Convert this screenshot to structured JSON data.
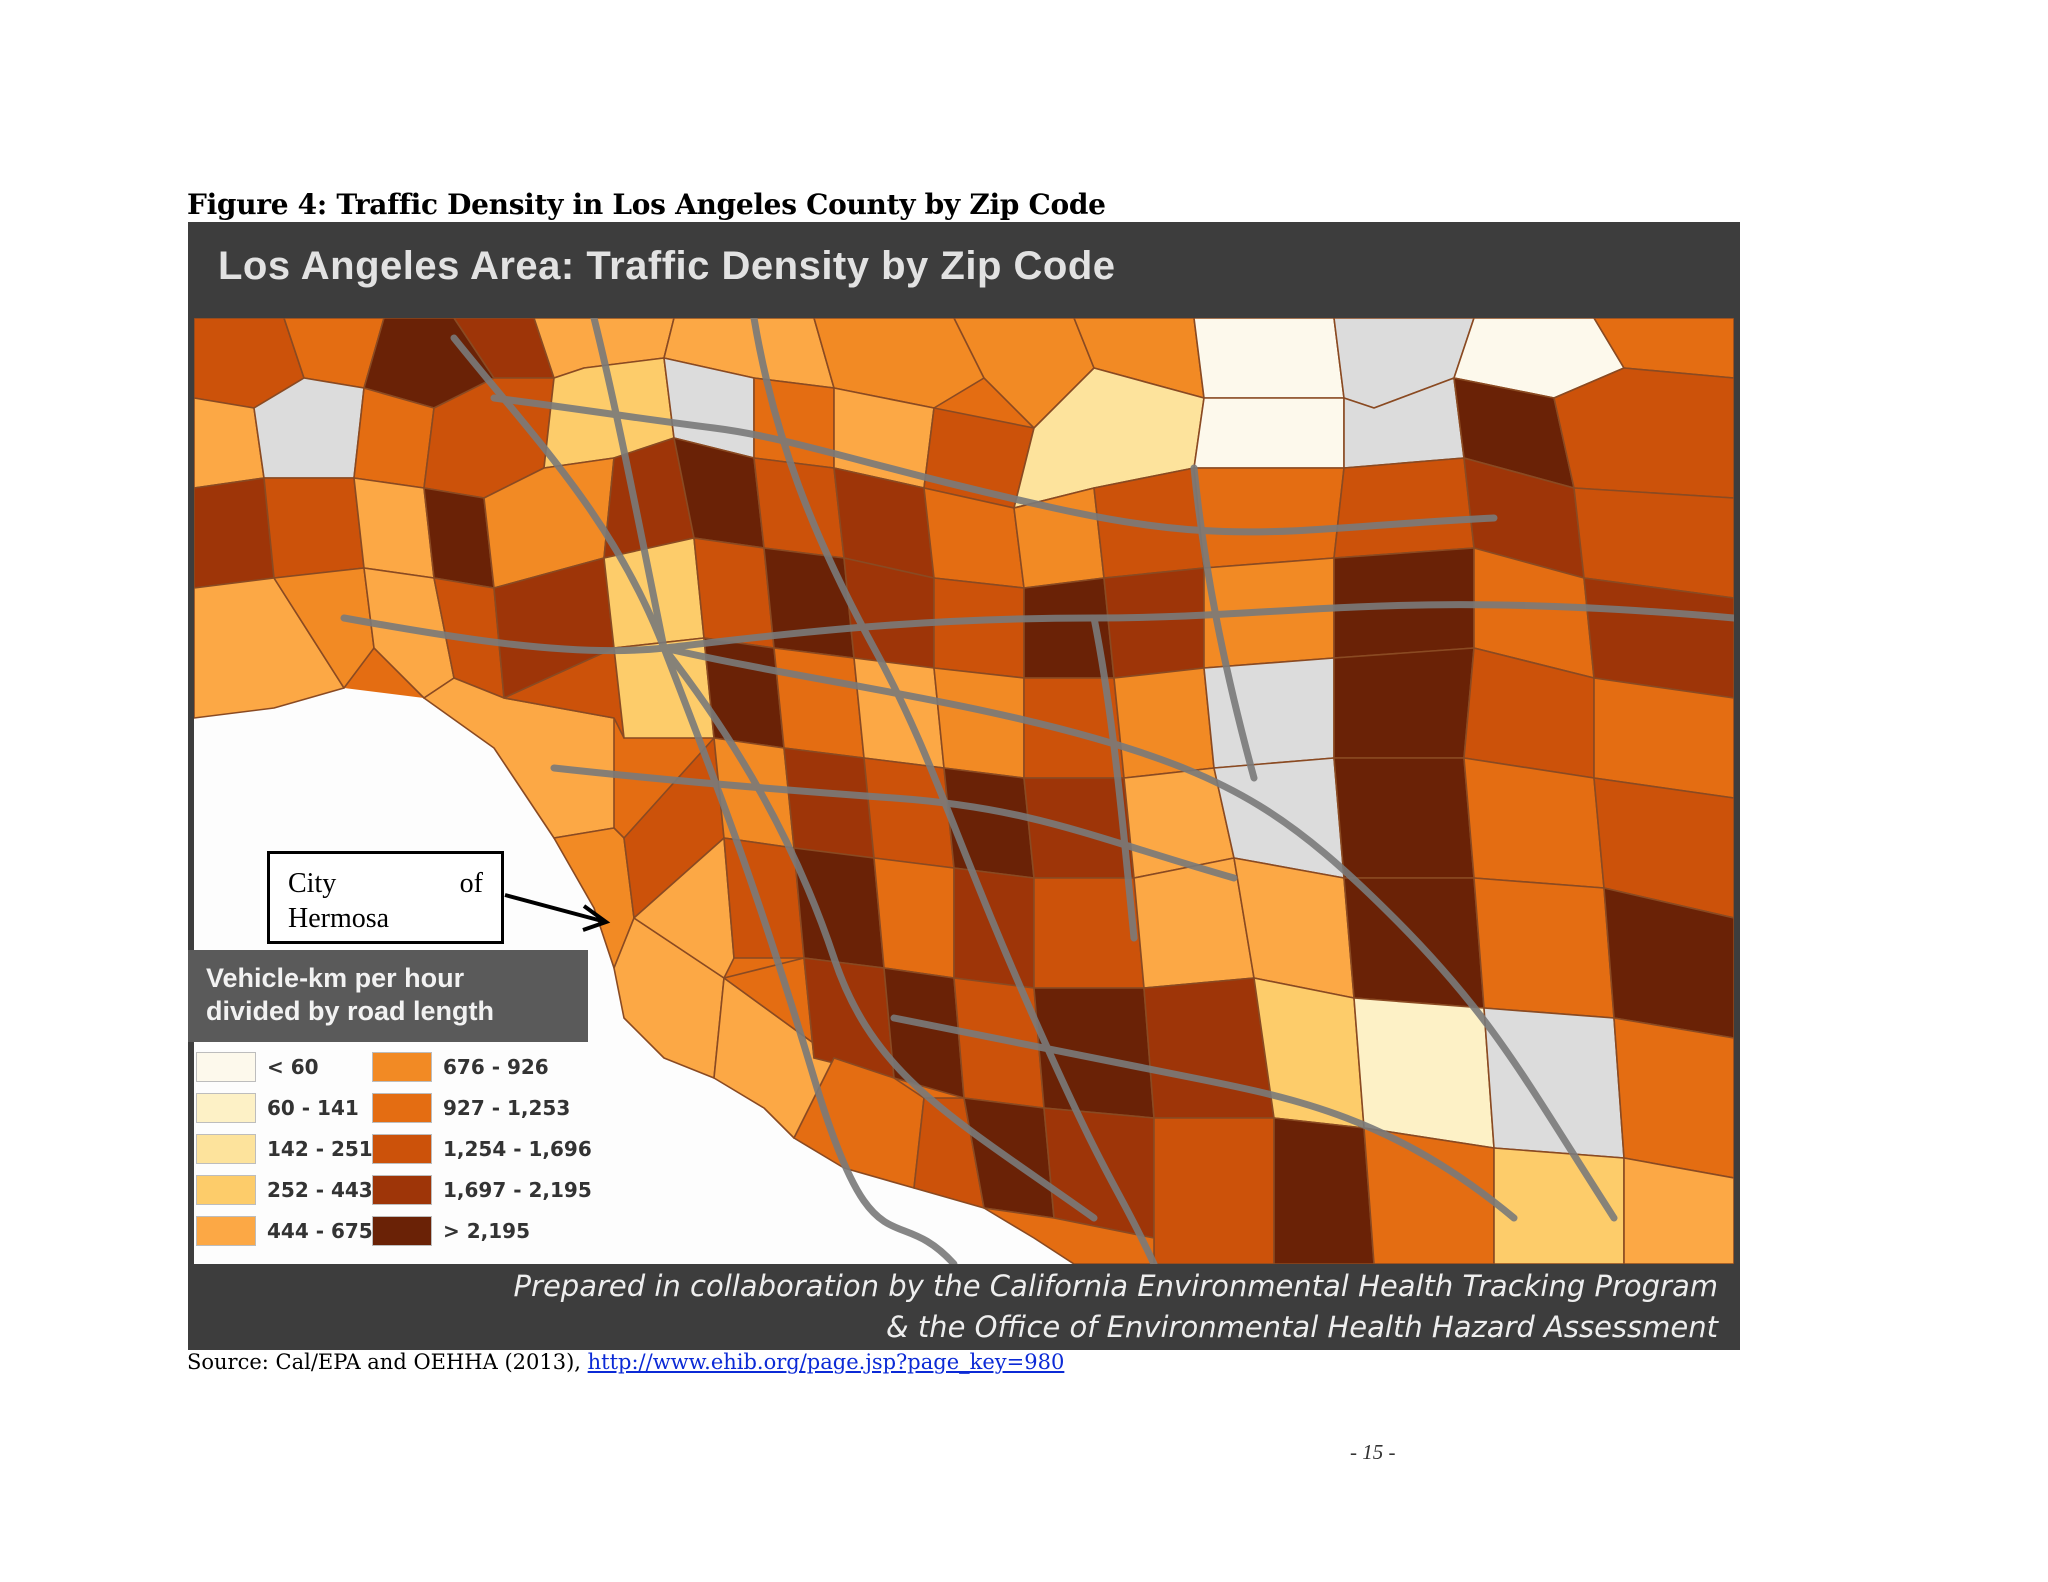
{
  "caption": "Figure 4: Traffic Density in Los Angeles County by Zip Code",
  "map": {
    "title": "Los Angeles Area: Traffic Density by Zip Code",
    "footer_line1": "Prepared in collaboration by the California Environmental Health Tracking Program",
    "footer_line2": "& the Office of Environmental Health Hazard Assessment",
    "legend": {
      "title_line1": "Vehicle-km per hour",
      "title_line2": "divided by road length",
      "classes": [
        {
          "label": "< 60",
          "color": "#fdf9ec"
        },
        {
          "label": "60 - 141",
          "color": "#fdf1c6"
        },
        {
          "label": "142 - 251",
          "color": "#fde39c"
        },
        {
          "label": "252 - 443",
          "color": "#fdcc6a"
        },
        {
          "label": "444 - 675",
          "color": "#fca845"
        },
        {
          "label": "676 - 926",
          "color": "#f28a24"
        },
        {
          "label": "927 - 1,253",
          "color": "#e46d12"
        },
        {
          "label": "1,254 - 1,696",
          "color": "#cc520a"
        },
        {
          "label": "1,697 - 2,195",
          "color": "#9e3508"
        },
        {
          "label": "> 2,195",
          "color": "#6a2206"
        }
      ],
      "no_data_color": "#dcdcdc"
    }
  },
  "callout": {
    "word1": "City",
    "word2": "of",
    "word3": "Hermosa"
  },
  "source": {
    "prefix": "Source: Cal/EPA and OEHHA (2013), ",
    "link_text": "http://www.ehib.org/page.jsp?page_key=980"
  },
  "page_number": "- 15 -"
}
